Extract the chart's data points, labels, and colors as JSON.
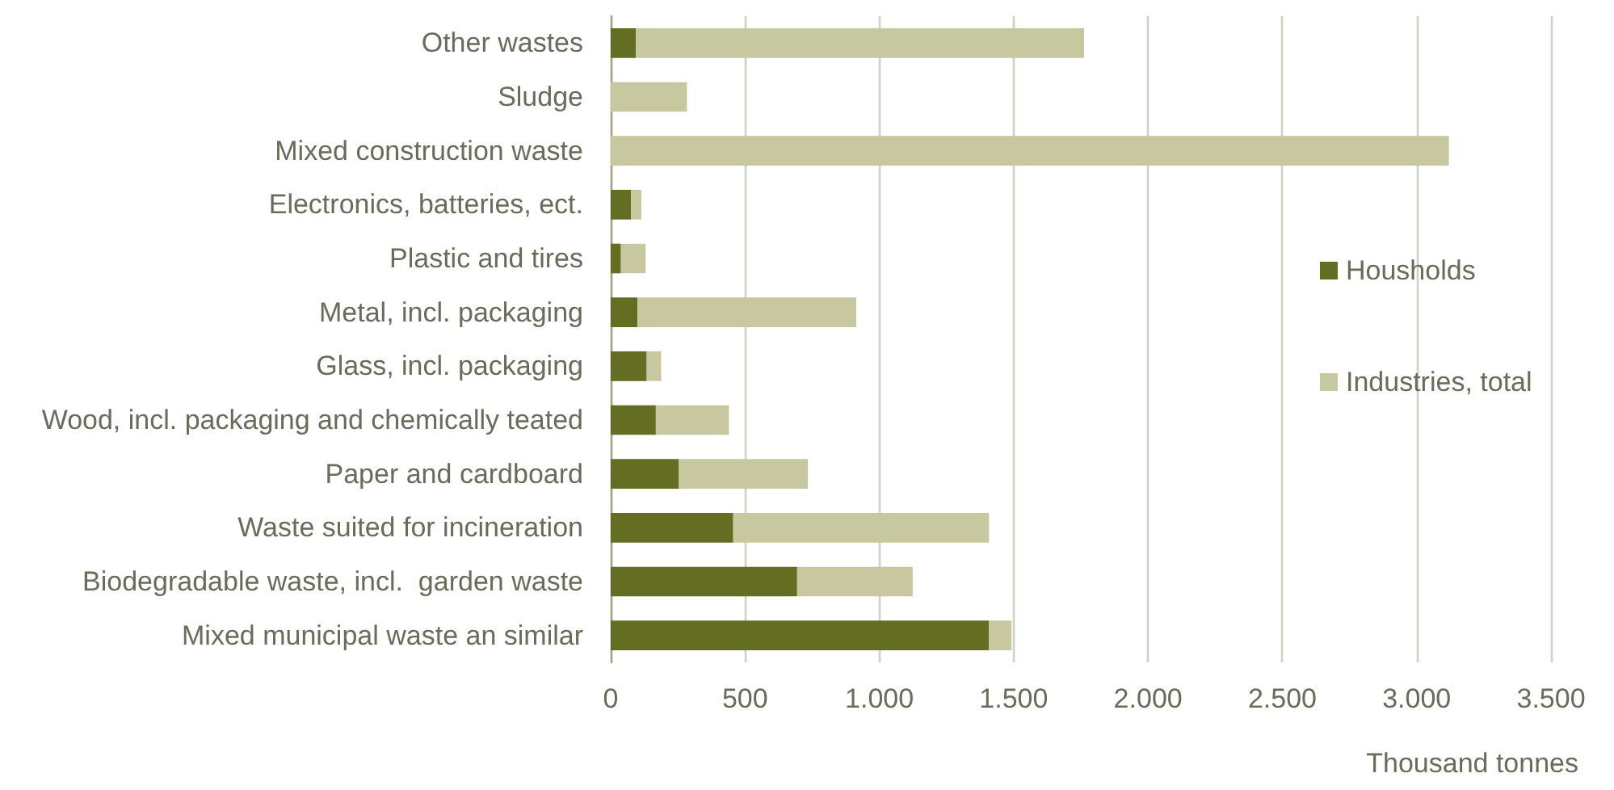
{
  "chart_data": {
    "type": "bar",
    "orientation": "horizontal",
    "stacked": true,
    "xlabel": "Thousand tonnes",
    "categories": [
      "Other wastes",
      "Sludge",
      "Mixed construction waste",
      "Electronics, batteries, ect.",
      "Plastic and tires",
      "Metal, incl. packaging",
      "Glass, incl. packaging",
      "Wood, incl. packaging and chemically teated",
      "Paper and cardboard",
      "Waste suited for incineration",
      "Biodegradable waste, incl.  garden waste",
      "Mixed municipal waste an similar"
    ],
    "series": [
      {
        "name": "Housholds",
        "color": "#636e22",
        "values": [
          94,
          0,
          0,
          76,
          38,
          100,
          134,
          168,
          254,
          456,
          694,
          1408
        ]
      },
      {
        "name": "Industries, total",
        "color": "#c8c8a0",
        "values": [
          1668,
          284,
          3120,
          38,
          92,
          814,
          54,
          272,
          480,
          952,
          430,
          84
        ]
      }
    ],
    "xlim": [
      0,
      3500
    ],
    "xticks": [
      0,
      500,
      {
        "value": 1000,
        "label": "1.000"
      },
      {
        "value": 1500,
        "label": "1.500"
      },
      {
        "value": 2000,
        "label": "2.000"
      },
      {
        "value": 2500,
        "label": "2.500"
      },
      {
        "value": 3000,
        "label": "3.000"
      },
      {
        "value": 3500,
        "label": "3.500"
      }
    ],
    "grid": "x",
    "legend": "right"
  }
}
